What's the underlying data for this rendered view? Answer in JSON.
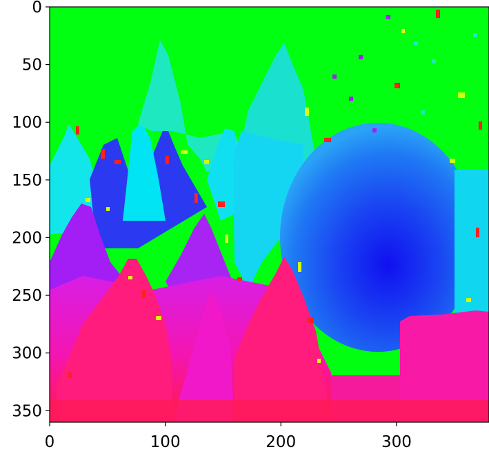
{
  "chart_data": {
    "type": "heatmap",
    "title": "",
    "xlabel": "",
    "ylabel": "",
    "xlim": [
      0,
      380
    ],
    "ylim": [
      360,
      0
    ],
    "y_axis_inverted": true,
    "colormap": "hsv",
    "grid": false,
    "x_ticks": [
      0,
      100,
      200,
      300
    ],
    "x_tick_labels": [
      "0",
      "100",
      "200",
      "300"
    ],
    "y_ticks": [
      0,
      50,
      100,
      150,
      200,
      250,
      300,
      350
    ],
    "y_tick_labels": [
      "0",
      "50",
      "100",
      "150",
      "200",
      "250",
      "300",
      "350"
    ],
    "color_regions": [
      {
        "name": "sky",
        "color": "#00ff10"
      },
      {
        "name": "pinnacles",
        "color": "#1ee8c0"
      },
      {
        "name": "pinnacles-light",
        "color": "#00e8f0"
      },
      {
        "name": "dome",
        "color": "#0a6ef5"
      },
      {
        "name": "dome-core",
        "color": "#0a20f0"
      },
      {
        "name": "purple",
        "color": "#a11ef5"
      },
      {
        "name": "magenta",
        "color": "#ef14c8"
      },
      {
        "name": "pink",
        "color": "#ff146e"
      },
      {
        "name": "noise-red",
        "color": "#ff2020"
      },
      {
        "name": "noise-yellow",
        "color": "#d2ff10"
      }
    ]
  }
}
